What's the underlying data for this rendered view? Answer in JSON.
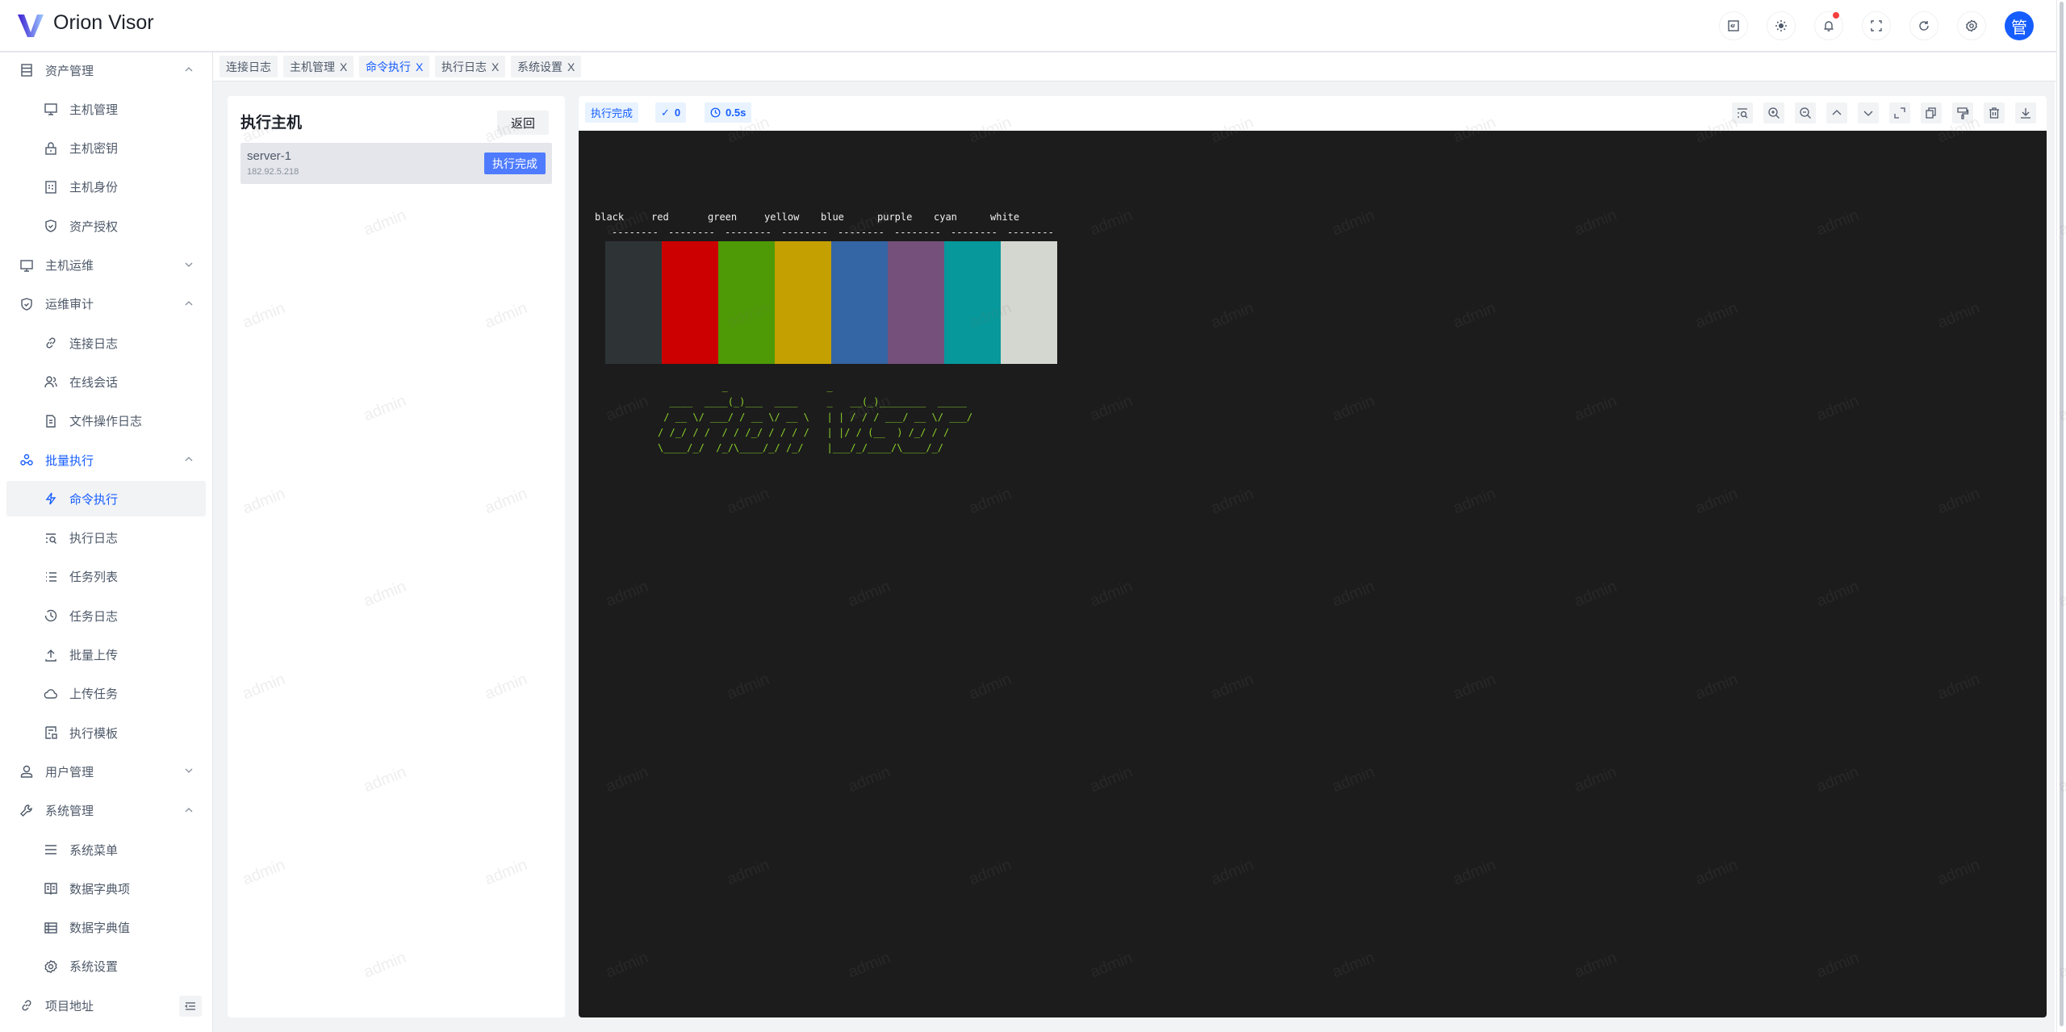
{
  "app": {
    "title": "Orion Visor",
    "avatar_text": "管",
    "watermark": "admin"
  },
  "header": {
    "icons": [
      "code-icon",
      "theme-sun-icon",
      "bell-icon",
      "fullscreen-icon",
      "refresh-icon",
      "gear-icon"
    ],
    "notification_dot": true
  },
  "sidebar": {
    "items": [
      {
        "label": "资产管理",
        "type": "group",
        "icon": "database-icon",
        "expanded": true
      },
      {
        "label": "主机管理",
        "type": "sub",
        "icon": "desktop-icon"
      },
      {
        "label": "主机密钥",
        "type": "sub",
        "icon": "lock-icon"
      },
      {
        "label": "主机身份",
        "type": "sub",
        "icon": "id-card-icon"
      },
      {
        "label": "资产授权",
        "type": "sub",
        "icon": "shield-icon"
      },
      {
        "label": "主机运维",
        "type": "group",
        "icon": "desktop-icon",
        "expanded": false
      },
      {
        "label": "运维审计",
        "type": "group",
        "icon": "shield-icon",
        "expanded": true
      },
      {
        "label": "连接日志",
        "type": "sub",
        "icon": "link-icon"
      },
      {
        "label": "在线会话",
        "type": "sub",
        "icon": "users-icon"
      },
      {
        "label": "文件操作日志",
        "type": "sub",
        "icon": "file-icon"
      },
      {
        "label": "批量执行",
        "type": "group",
        "icon": "cluster-icon",
        "expanded": true,
        "active": true
      },
      {
        "label": "命令执行",
        "type": "sub",
        "icon": "thunder-icon",
        "selected": true
      },
      {
        "label": "执行日志",
        "type": "sub",
        "icon": "list-search-icon"
      },
      {
        "label": "任务列表",
        "type": "sub",
        "icon": "list-icon"
      },
      {
        "label": "任务日志",
        "type": "sub",
        "icon": "history-icon"
      },
      {
        "label": "批量上传",
        "type": "sub",
        "icon": "upload-icon"
      },
      {
        "label": "上传任务",
        "type": "sub",
        "icon": "cloud-icon"
      },
      {
        "label": "执行模板",
        "type": "sub",
        "icon": "template-icon"
      },
      {
        "label": "用户管理",
        "type": "group",
        "icon": "user-icon",
        "expanded": false
      },
      {
        "label": "系统管理",
        "type": "group",
        "icon": "wrench-icon",
        "expanded": true
      },
      {
        "label": "系统菜单",
        "type": "sub",
        "icon": "menu-icon"
      },
      {
        "label": "数据字典项",
        "type": "sub",
        "icon": "book-icon"
      },
      {
        "label": "数据字典值",
        "type": "sub",
        "icon": "table-icon"
      },
      {
        "label": "系统设置",
        "type": "sub",
        "icon": "gear-icon"
      },
      {
        "label": "项目地址",
        "type": "link",
        "icon": "link-icon"
      }
    ]
  },
  "tabs": [
    {
      "label": "连接日志",
      "closable": false
    },
    {
      "label": "主机管理",
      "closable": true
    },
    {
      "label": "命令执行",
      "closable": true,
      "active": true
    },
    {
      "label": "执行日志",
      "closable": true
    },
    {
      "label": "系统设置",
      "closable": true
    }
  ],
  "tab_close": "X",
  "left_panel": {
    "title": "执行主机",
    "back_label": "返回",
    "host": {
      "name": "server-1",
      "address": "182.92.5.218",
      "status": "执行完成"
    }
  },
  "right_panel": {
    "status": "执行完成",
    "exit_code": "0",
    "duration": "0.5s",
    "toolbar_icons": [
      "search-log-icon",
      "zoom-in-icon",
      "zoom-out-icon",
      "chevron-up-icon",
      "chevron-down-icon",
      "expand-icon",
      "copy-icon",
      "format-painter-icon",
      "delete-icon",
      "download-icon"
    ]
  },
  "terminal": {
    "colors": [
      {
        "name": "black",
        "hex": "#2e3436"
      },
      {
        "name": "red",
        "hex": "#cc0000"
      },
      {
        "name": "green",
        "hex": "#4e9a06"
      },
      {
        "name": "yellow",
        "hex": "#c4a000"
      },
      {
        "name": "blue",
        "hex": "#3465a4"
      },
      {
        "name": "purple",
        "hex": "#75507b"
      },
      {
        "name": "cyan",
        "hex": "#06989a"
      },
      {
        "name": "white",
        "hex": "#d3d7cf"
      }
    ],
    "dash": "--------",
    "ascii_color": "#8ad12a",
    "ascii_art": "           _                 _\n  ____  ____(_)___  ____     _   __(_)________  _____\n / __ \\/ ___/ / __ \\/ __ \\   | | / / / ___/ __ \\/ ___/\n/ /_/ / /  / / /_/ / / / /   | |/ / (__  ) /_/ / /\n\\____/_/  /_/\\____/_/ /_/    |___/_/____/\\____/_/"
  },
  "accent": "#165dff"
}
